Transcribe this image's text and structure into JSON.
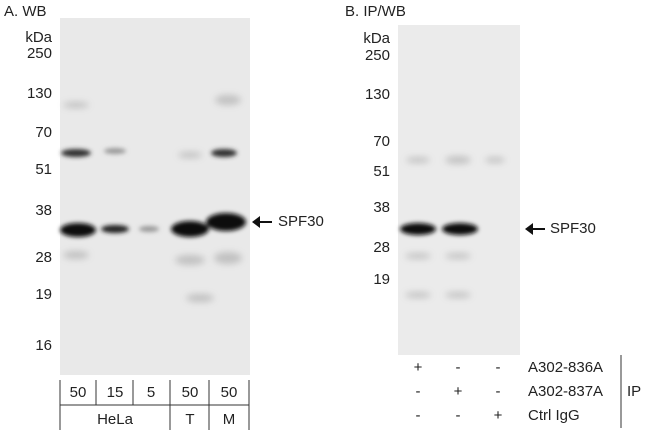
{
  "panel_a": {
    "title": "A. WB",
    "unit": "kDa",
    "markers": [
      "250",
      "130",
      "70",
      "51",
      "38",
      "28",
      "19",
      "16"
    ],
    "band_label": "SPF30",
    "loads": [
      "50",
      "15",
      "5",
      "50",
      "50"
    ],
    "groups": [
      "HeLa",
      "T",
      "M"
    ]
  },
  "panel_b": {
    "title": "B. IP/WB",
    "unit": "kDa",
    "markers": [
      "250",
      "130",
      "70",
      "51",
      "38",
      "28",
      "19"
    ],
    "band_label": "SPF30",
    "rows": [
      {
        "signs": [
          "+",
          "-",
          "-"
        ],
        "label": "A302-836A"
      },
      {
        "signs": [
          "-",
          "+",
          "-"
        ],
        "label": "A302-837A"
      },
      {
        "signs": [
          "-",
          "-",
          "+"
        ],
        "label": "Ctrl IgG"
      }
    ],
    "ip_label": "IP"
  }
}
